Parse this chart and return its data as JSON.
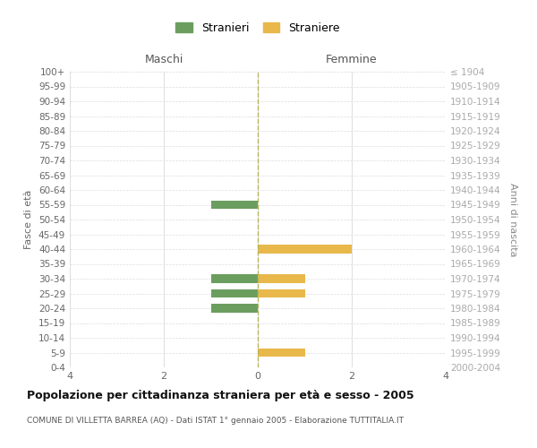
{
  "age_groups": [
    "100+",
    "95-99",
    "90-94",
    "85-89",
    "80-84",
    "75-79",
    "70-74",
    "65-69",
    "60-64",
    "55-59",
    "50-54",
    "45-49",
    "40-44",
    "35-39",
    "30-34",
    "25-29",
    "20-24",
    "15-19",
    "10-14",
    "5-9",
    "0-4"
  ],
  "birth_years": [
    "≤ 1904",
    "1905-1909",
    "1910-1914",
    "1915-1919",
    "1920-1924",
    "1925-1929",
    "1930-1934",
    "1935-1939",
    "1940-1944",
    "1945-1949",
    "1950-1954",
    "1955-1959",
    "1960-1964",
    "1965-1969",
    "1970-1974",
    "1975-1979",
    "1980-1984",
    "1985-1989",
    "1990-1994",
    "1995-1999",
    "2000-2004"
  ],
  "maschi_stranieri": [
    0,
    0,
    0,
    0,
    0,
    0,
    0,
    0,
    0,
    -1,
    0,
    0,
    0,
    0,
    -1,
    -1,
    -1,
    0,
    0,
    0,
    0
  ],
  "femmine_straniere": [
    0,
    0,
    0,
    0,
    0,
    0,
    0,
    0,
    0,
    0,
    0,
    0,
    2,
    0,
    1,
    1,
    0,
    0,
    0,
    1,
    0
  ],
  "color_maschi": "#6b9e5e",
  "color_femmine": "#e8b84b",
  "xlabel_left": "Maschi",
  "xlabel_right": "Femmine",
  "ylabel_left": "Fasce di età",
  "ylabel_right": "Anni di nascita",
  "legend_maschi": "Stranieri",
  "legend_femmine": "Straniere",
  "title": "Popolazione per cittadinanza straniera per età e sesso - 2005",
  "subtitle": "COMUNE DI VILLETTA BARREA (AQ) - Dati ISTAT 1° gennaio 2005 - Elaborazione TUTTITALIA.IT",
  "xlim": 4,
  "background_color": "#ffffff",
  "grid_color": "#dddddd",
  "centerline_color": "#b5b55a"
}
